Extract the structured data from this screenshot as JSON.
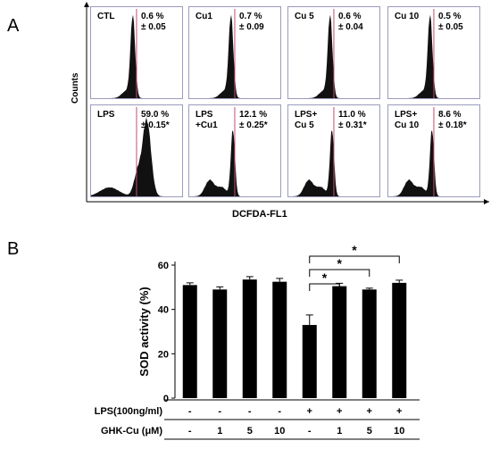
{
  "panel_a": {
    "letter": "A",
    "y_label": "Counts",
    "x_label": "DCFDA-FL1",
    "panels": [
      {
        "label": "CTL",
        "pct": "0.6 %",
        "sd": "± 0.05",
        "shape": "single",
        "peak": 0.46
      },
      {
        "label": "Cu1",
        "pct": "0.7 %",
        "sd": "± 0.09",
        "shape": "single",
        "peak": 0.46
      },
      {
        "label": "Cu 5",
        "pct": "0.6 %",
        "sd": "± 0.04",
        "shape": "single",
        "peak": 0.46
      },
      {
        "label": "Cu 10",
        "pct": "0.5 %",
        "sd": "± 0.05",
        "shape": "single",
        "peak": 0.46
      },
      {
        "label": "LPS",
        "pct": "59.0 %",
        "sd": "± 0.15*",
        "shape": "shifted",
        "peak": 0.58
      },
      {
        "label": "LPS\n+Cu1",
        "pct": "12.1 %",
        "sd": "± 0.25*",
        "shape": "mixed",
        "peak": 0.46
      },
      {
        "label": "LPS+\nCu 5",
        "pct": "11.0 %",
        "sd": "± 0.31*",
        "shape": "mixed",
        "peak": 0.46
      },
      {
        "label": "LPS+\nCu 10",
        "pct": "8.6 %",
        "sd": "± 0.18*",
        "shape": "mixed",
        "peak": 0.46
      }
    ]
  },
  "panel_b": {
    "letter": "B",
    "row_labels": [
      "LPS(100ng/ml)",
      "GHK-Cu  (μM)"
    ],
    "lps_row": [
      "-",
      "-",
      "-",
      "-",
      "+",
      "+",
      "+",
      "+"
    ],
    "ghk_row": [
      "-",
      "1",
      "5",
      "10",
      "-",
      "1",
      "5",
      "10"
    ],
    "significance": [
      "*",
      "*",
      "*"
    ]
  },
  "chart_data": {
    "type": "bar",
    "ylabel": "SOD activity (%)",
    "xlabel": "",
    "ylim": [
      0,
      60
    ],
    "yticks": [
      0,
      20,
      40,
      60
    ],
    "categories": [
      "1",
      "2",
      "3",
      "4",
      "5",
      "6",
      "7",
      "8"
    ],
    "values": [
      51,
      49,
      53.5,
      52.5,
      33,
      50.5,
      49,
      52
    ],
    "errors": [
      1,
      1.2,
      1.3,
      1.5,
      4.5,
      1.3,
      0.6,
      1.2
    ],
    "comparisons": [
      [
        5,
        6
      ],
      [
        5,
        7
      ],
      [
        5,
        8
      ]
    ],
    "bar_color": "#000000"
  }
}
